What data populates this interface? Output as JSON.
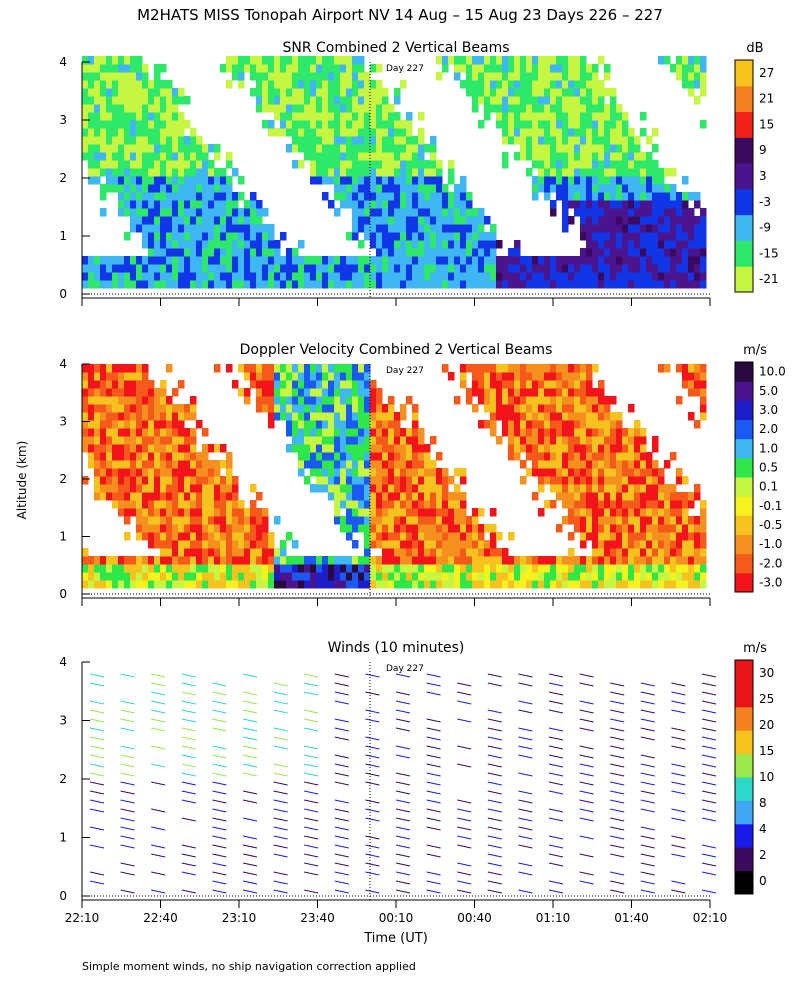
{
  "title": "M2HATS MISS Tonopah Airport NV  14 Aug – 15 Aug 23 Days 226 – 227",
  "footnote": "Simple moment winds, no ship navigation correction applied",
  "xlabel": "Time (UT)",
  "ylabel": "Altitude (km)",
  "x_ticks": [
    "22:10",
    "22:40",
    "23:10",
    "23:40",
    "00:10",
    "00:40",
    "01:10",
    "01:40",
    "02:10"
  ],
  "day_marker": "Day 227",
  "chart_data": [
    {
      "type": "heatmap",
      "title": "SNR Combined 2 Vertical Beams",
      "ylabel": "Altitude (km)",
      "ylim": [
        0,
        4
      ],
      "y_ticks": [
        "0",
        "1",
        "2",
        "3",
        "4"
      ],
      "colorbar": {
        "unit": "dB",
        "labels": [
          "-21",
          "-15",
          "-9",
          "-3",
          "3",
          "9",
          "15",
          "21",
          "27"
        ],
        "colors": [
          "#c6f542",
          "#2ee86a",
          "#3fb7f2",
          "#1136e8",
          "#4a148c",
          "#3a0a5e",
          "#f2221a",
          "#f58222",
          "#f5c21e"
        ]
      }
    },
    {
      "type": "heatmap",
      "title": "Doppler Velocity Combined 2 Vertical Beams",
      "ylabel": "Altitude (km)",
      "ylim": [
        0,
        4
      ],
      "y_ticks": [
        "0",
        "1",
        "2",
        "3",
        "4"
      ],
      "colorbar": {
        "unit": "m/s",
        "labels": [
          "-3.0",
          "-2.0",
          "-1.0",
          "-0.5",
          "-0.1",
          "0.1",
          "0.5",
          "1.0",
          "2.0",
          "3.0",
          "5.0",
          "10.0"
        ],
        "colors": [
          "#f2141a",
          "#f55a1a",
          "#f5901e",
          "#f5c21e",
          "#f5f21e",
          "#c6f542",
          "#2ee84a",
          "#3fb7f2",
          "#1a5af2",
          "#1e1ec8",
          "#4a148c",
          "#2a0a3e"
        ]
      }
    },
    {
      "type": "wind_barbs",
      "title": "Winds (10 minutes)",
      "ylabel": "Altitude (km)",
      "ylim": [
        0,
        4
      ],
      "y_ticks": [
        "0",
        "1",
        "2",
        "3",
        "4"
      ],
      "colorbar": {
        "unit": "m/s",
        "labels": [
          "0",
          "2",
          "4",
          "8",
          "10",
          "15",
          "20",
          "25",
          "30"
        ],
        "colors": [
          "#000000",
          "#3a0a5e",
          "#1a1ae8",
          "#3fa7f2",
          "#2ed8c8",
          "#9be84a",
          "#f5c21e",
          "#f58222",
          "#e8141a",
          "#e8141a"
        ]
      }
    }
  ]
}
